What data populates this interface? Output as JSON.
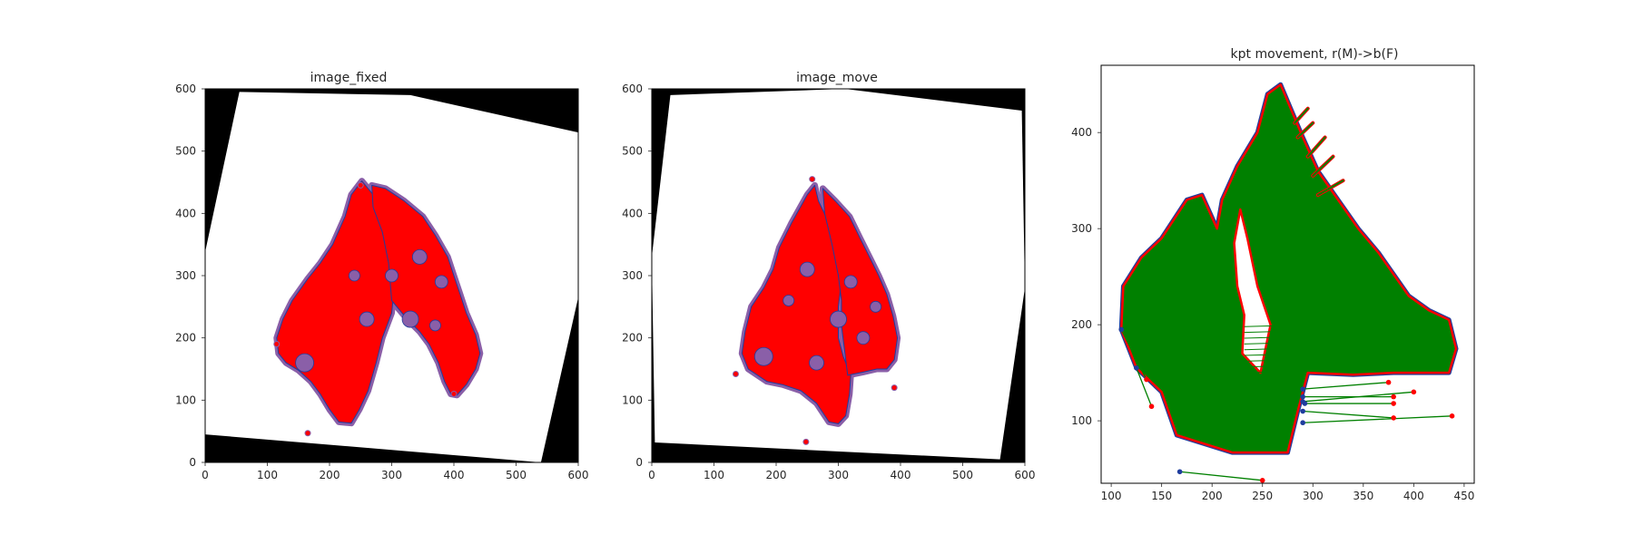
{
  "figure": {
    "background": "#ffffff"
  },
  "colors": {
    "moving_points": "#ff0000",
    "fixed_points": "#1f3d9e",
    "movement_lines": "#008000",
    "tissue_overlay": "#8a5fa8",
    "frame": "#000000",
    "warp_background": "#000000",
    "warp_image": "#ffffff"
  },
  "chart_data": [
    {
      "type": "scatter",
      "title": "image_fixed",
      "xlim": [
        0,
        600
      ],
      "ylim": [
        600,
        0
      ],
      "xticks": [
        0,
        100,
        200,
        300,
        400,
        500,
        600
      ],
      "yticks": [
        0,
        100,
        200,
        300,
        400,
        500,
        600
      ],
      "grid": false,
      "warp_quad": [
        [
          0,
          45
        ],
        [
          540,
          0
        ],
        [
          600,
          265
        ],
        [
          600,
          530
        ],
        [
          330,
          590
        ],
        [
          55,
          595
        ],
        [
          0,
          338
        ]
      ],
      "left_lobe": [
        [
          215,
          65
        ],
        [
          235,
          63
        ],
        [
          248,
          85
        ],
        [
          262,
          115
        ],
        [
          275,
          160
        ],
        [
          285,
          200
        ],
        [
          300,
          240
        ],
        [
          305,
          290
        ],
        [
          300,
          330
        ],
        [
          290,
          360
        ],
        [
          280,
          395
        ],
        [
          270,
          430
        ],
        [
          252,
          452
        ],
        [
          235,
          430
        ],
        [
          225,
          395
        ],
        [
          205,
          350
        ],
        [
          185,
          320
        ],
        [
          165,
          295
        ],
        [
          140,
          260
        ],
        [
          125,
          230
        ],
        [
          115,
          200
        ],
        [
          118,
          175
        ],
        [
          130,
          160
        ],
        [
          150,
          148
        ],
        [
          170,
          130
        ],
        [
          185,
          110
        ],
        [
          200,
          85
        ]
      ],
      "right_lobe": [
        [
          300,
          260
        ],
        [
          325,
          230
        ],
        [
          345,
          210
        ],
        [
          360,
          190
        ],
        [
          375,
          160
        ],
        [
          385,
          130
        ],
        [
          395,
          110
        ],
        [
          405,
          108
        ],
        [
          420,
          125
        ],
        [
          435,
          150
        ],
        [
          442,
          175
        ],
        [
          435,
          205
        ],
        [
          420,
          240
        ],
        [
          410,
          270
        ],
        [
          400,
          300
        ],
        [
          390,
          330
        ],
        [
          370,
          365
        ],
        [
          350,
          395
        ],
        [
          320,
          420
        ],
        [
          290,
          440
        ],
        [
          268,
          445
        ],
        [
          270,
          410
        ],
        [
          285,
          370
        ],
        [
          295,
          320
        ]
      ],
      "outliers": [
        [
          165,
          47
        ],
        [
          400,
          110
        ],
        [
          115,
          190
        ],
        [
          250,
          445
        ]
      ]
    },
    {
      "type": "scatter",
      "title": "image_move",
      "xlim": [
        0,
        600
      ],
      "ylim": [
        600,
        0
      ],
      "xticks": [
        0,
        100,
        200,
        300,
        400,
        500,
        600
      ],
      "yticks": [
        0,
        100,
        200,
        300,
        400,
        500,
        600
      ],
      "grid": false,
      "warp_quad": [
        [
          5,
          32
        ],
        [
          560,
          5
        ],
        [
          600,
          280
        ],
        [
          595,
          565
        ],
        [
          310,
          600
        ],
        [
          30,
          590
        ],
        [
          0,
          330
        ]
      ],
      "left_lobe": [
        [
          285,
          65
        ],
        [
          300,
          62
        ],
        [
          312,
          75
        ],
        [
          318,
          110
        ],
        [
          320,
          140
        ],
        [
          308,
          170
        ],
        [
          300,
          200
        ],
        [
          300,
          250
        ],
        [
          305,
          290
        ],
        [
          298,
          330
        ],
        [
          290,
          360
        ],
        [
          280,
          395
        ],
        [
          268,
          420
        ],
        [
          262,
          445
        ],
        [
          250,
          430
        ],
        [
          225,
          385
        ],
        [
          205,
          345
        ],
        [
          195,
          310
        ],
        [
          180,
          280
        ],
        [
          160,
          250
        ],
        [
          150,
          210
        ],
        [
          145,
          175
        ],
        [
          155,
          150
        ],
        [
          185,
          130
        ],
        [
          210,
          125
        ],
        [
          240,
          115
        ],
        [
          265,
          95
        ]
      ],
      "right_lobe": [
        [
          315,
          140
        ],
        [
          340,
          145
        ],
        [
          362,
          150
        ],
        [
          378,
          150
        ],
        [
          390,
          165
        ],
        [
          395,
          200
        ],
        [
          388,
          235
        ],
        [
          378,
          270
        ],
        [
          365,
          300
        ],
        [
          350,
          330
        ],
        [
          335,
          360
        ],
        [
          318,
          395
        ],
        [
          295,
          420
        ],
        [
          275,
          440
        ],
        [
          278,
          400
        ],
        [
          290,
          350
        ],
        [
          300,
          300
        ],
        [
          305,
          260
        ],
        [
          305,
          220
        ],
        [
          310,
          180
        ]
      ],
      "outliers": [
        [
          248,
          33
        ],
        [
          390,
          120
        ],
        [
          135,
          142
        ],
        [
          258,
          455
        ]
      ]
    },
    {
      "type": "scatter",
      "title": "kpt movement, r(M)->b(F)",
      "xlim": [
        90,
        460
      ],
      "ylim": [
        470,
        35
      ],
      "xticks": [
        100,
        150,
        200,
        250,
        300,
        350,
        400,
        450
      ],
      "yticks": [
        100,
        200,
        300,
        400
      ],
      "grid": false,
      "mass": [
        [
          110,
          195
        ],
        [
          125,
          155
        ],
        [
          150,
          130
        ],
        [
          165,
          85
        ],
        [
          220,
          67
        ],
        [
          275,
          67
        ],
        [
          285,
          110
        ],
        [
          295,
          150
        ],
        [
          340,
          148
        ],
        [
          380,
          150
        ],
        [
          435,
          150
        ],
        [
          442,
          175
        ],
        [
          435,
          205
        ],
        [
          415,
          215
        ],
        [
          395,
          230
        ],
        [
          375,
          260
        ],
        [
          365,
          275
        ],
        [
          345,
          300
        ],
        [
          325,
          330
        ],
        [
          305,
          360
        ],
        [
          290,
          395
        ],
        [
          278,
          425
        ],
        [
          268,
          450
        ],
        [
          255,
          440
        ],
        [
          245,
          400
        ],
        [
          225,
          365
        ],
        [
          210,
          330
        ],
        [
          205,
          300
        ],
        [
          190,
          335
        ],
        [
          175,
          330
        ],
        [
          150,
          290
        ],
        [
          130,
          270
        ],
        [
          112,
          240
        ]
      ],
      "gap": [
        [
          230,
          170
        ],
        [
          248,
          150
        ],
        [
          258,
          200
        ],
        [
          245,
          240
        ],
        [
          235,
          290
        ],
        [
          228,
          320
        ],
        [
          222,
          285
        ],
        [
          225,
          240
        ],
        [
          232,
          210
        ]
      ],
      "stray_segments": [
        [
          [
            168,
            47
          ],
          [
            250,
            38
          ]
        ],
        [
          [
            110,
            195
          ],
          [
            135,
            143
          ]
        ],
        [
          [
            125,
            155
          ],
          [
            140,
            115
          ]
        ],
        [
          [
            290,
            98
          ],
          [
            438,
            105
          ]
        ],
        [
          [
            290,
            110
          ],
          [
            380,
            103
          ]
        ],
        [
          [
            290,
            120
          ],
          [
            400,
            130
          ]
        ],
        [
          [
            290,
            125
          ],
          [
            380,
            125
          ]
        ],
        [
          [
            292,
            118
          ],
          [
            380,
            118
          ]
        ],
        [
          [
            290,
            133
          ],
          [
            375,
            140
          ]
        ]
      ],
      "tail_segments": [
        [
          [
            305,
            335
          ],
          [
            330,
            350
          ]
        ],
        [
          [
            300,
            355
          ],
          [
            320,
            375
          ]
        ],
        [
          [
            295,
            375
          ],
          [
            312,
            395
          ]
        ],
        [
          [
            285,
            395
          ],
          [
            300,
            410
          ]
        ],
        [
          [
            282,
            410
          ],
          [
            295,
            425
          ]
        ]
      ]
    }
  ]
}
